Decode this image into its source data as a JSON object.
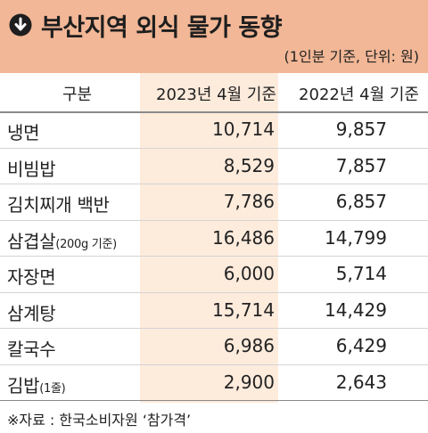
{
  "header": {
    "title": "부산지역 외식 물가 동향",
    "unit_note": "(1인분 기준, 단위: 원)"
  },
  "columns": {
    "category": "구분",
    "y2023": "2023년 4월 기준",
    "y2022": "2022년 4월 기준"
  },
  "rows": [
    {
      "name": "냉면",
      "note": "",
      "v2023": "10,714",
      "v2022": "9,857"
    },
    {
      "name": "비빔밥",
      "note": "",
      "v2023": "8,529",
      "v2022": "7,857"
    },
    {
      "name": "김치찌개 백반",
      "note": "",
      "v2023": "7,786",
      "v2022": "6,857"
    },
    {
      "name": "삼겹살",
      "note": "(200g 기준)",
      "v2023": "16,486",
      "v2022": "14,799"
    },
    {
      "name": "자장면",
      "note": "",
      "v2023": "6,000",
      "v2022": "5,714"
    },
    {
      "name": "삼계탕",
      "note": "",
      "v2023": "15,714",
      "v2022": "14,429"
    },
    {
      "name": "칼국수",
      "note": "",
      "v2023": "6,986",
      "v2022": "6,429"
    },
    {
      "name": "김밥",
      "note": "(1줄)",
      "v2023": "2,900",
      "v2022": "2,643"
    }
  ],
  "source": "※자료 : 한국소비자원 ‘참가격’",
  "colors": {
    "header_bg": "#f2b796",
    "highlight_col": "#fdebdc"
  },
  "icon": "arrow-down-circle-icon"
}
